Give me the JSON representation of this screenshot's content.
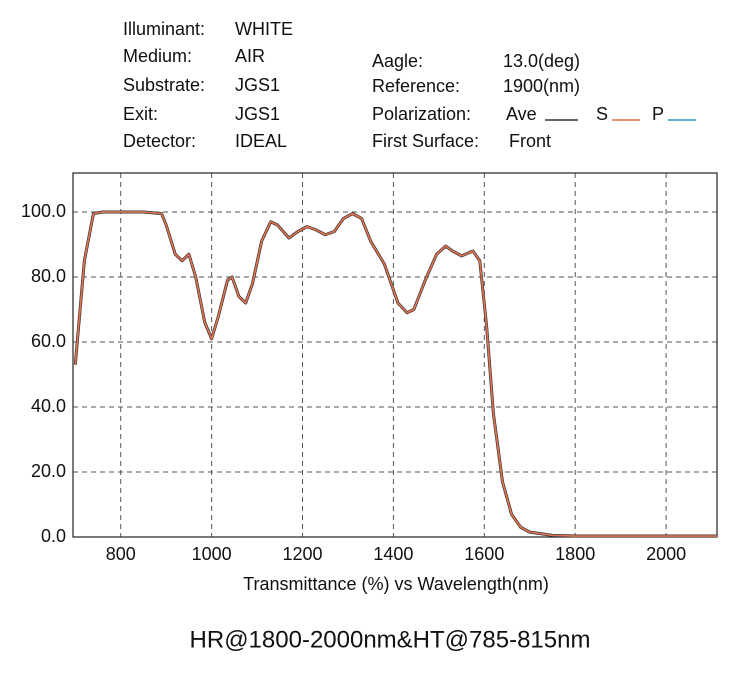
{
  "chart_data": {
    "type": "line",
    "title": "HR@1800-2000nm&HT@785-815nm",
    "xlabel": "Transmittance (%) vs Wavelength(nm)",
    "info_left": [
      {
        "label": "Illuminant:",
        "value": "WHITE"
      },
      {
        "label": "Medium:",
        "value": "AIR"
      },
      {
        "label": "Substrate:",
        "value": "JGS1"
      },
      {
        "label": "Exit:",
        "value": "JGS1"
      },
      {
        "label": "Detector:",
        "value": "IDEAL"
      }
    ],
    "info_right": [
      {
        "label": "Aagle:",
        "value": "13.0(deg)"
      },
      {
        "label": "Reference:",
        "value": "1900(nm)"
      }
    ],
    "legend_label": "Polarization:",
    "first_surface": {
      "label": "First Surface:",
      "value": "Front"
    },
    "x": [
      700,
      720,
      740,
      760,
      800,
      850,
      890,
      900,
      920,
      935,
      950,
      965,
      985,
      1000,
      1015,
      1035,
      1045,
      1060,
      1075,
      1090,
      1110,
      1130,
      1145,
      1170,
      1190,
      1210,
      1230,
      1250,
      1270,
      1290,
      1310,
      1330,
      1350,
      1380,
      1410,
      1430,
      1445,
      1470,
      1495,
      1515,
      1530,
      1550,
      1575,
      1590,
      1605,
      1620,
      1640,
      1660,
      1680,
      1700,
      1750,
      1800,
      2112
    ],
    "series": [
      {
        "name": "Ave",
        "color": "#333333",
        "values": [
          53,
          85,
          99.5,
          100,
          100,
          100,
          99.5,
          96,
          87,
          85,
          87,
          80,
          66,
          61,
          68,
          79,
          80,
          74,
          72,
          78,
          91,
          97,
          96,
          92,
          94,
          95.5,
          94.5,
          93,
          94,
          98,
          99.5,
          98,
          91,
          84,
          72,
          69,
          70,
          79,
          87,
          89.5,
          88,
          86.5,
          88,
          85,
          65,
          38,
          17,
          7,
          3,
          1.5,
          0.5,
          0.3,
          0.3
        ]
      },
      {
        "name": "S",
        "color": "#e8704a",
        "values": [
          53,
          85,
          99.5,
          100,
          100,
          100,
          99.5,
          96,
          87,
          85,
          87,
          80,
          66,
          61,
          68,
          79,
          80,
          74,
          72,
          78,
          91,
          97,
          96,
          92,
          94,
          95.5,
          94.5,
          93,
          94,
          98,
          99.5,
          98,
          91,
          84,
          72,
          69,
          70,
          79,
          87,
          89.5,
          88,
          86.5,
          88,
          85,
          65,
          38,
          17,
          7,
          3,
          1.5,
          0.5,
          0.3,
          0.3
        ]
      },
      {
        "name": "P",
        "color": "#2a9ac8",
        "values": [
          53,
          85,
          99.5,
          100,
          100,
          100,
          99.5,
          96,
          87,
          85,
          87,
          80,
          66,
          61,
          68,
          79,
          80,
          74,
          72,
          78,
          91,
          97,
          96,
          92,
          94,
          95.5,
          94.5,
          93,
          94,
          98,
          99.5,
          98,
          91,
          84,
          72,
          69,
          70,
          79,
          87,
          89.5,
          88,
          86.5,
          88,
          85,
          65,
          38,
          17,
          7,
          3,
          1.5,
          0.5,
          0.3,
          0.3
        ]
      }
    ],
    "xlim": [
      695,
      2112
    ],
    "xticks": [
      800,
      1000,
      1200,
      1400,
      1600,
      1800,
      2000
    ],
    "ylim": [
      0,
      112
    ],
    "yticks": [
      {
        "value": 0,
        "label": "0.0"
      },
      {
        "value": 20,
        "label": "20.0"
      },
      {
        "value": 40,
        "label": "40.0"
      },
      {
        "value": 60,
        "label": "60.0"
      },
      {
        "value": 80,
        "label": "80.0"
      },
      {
        "value": 100,
        "label": "100.0"
      }
    ],
    "grid": true
  }
}
